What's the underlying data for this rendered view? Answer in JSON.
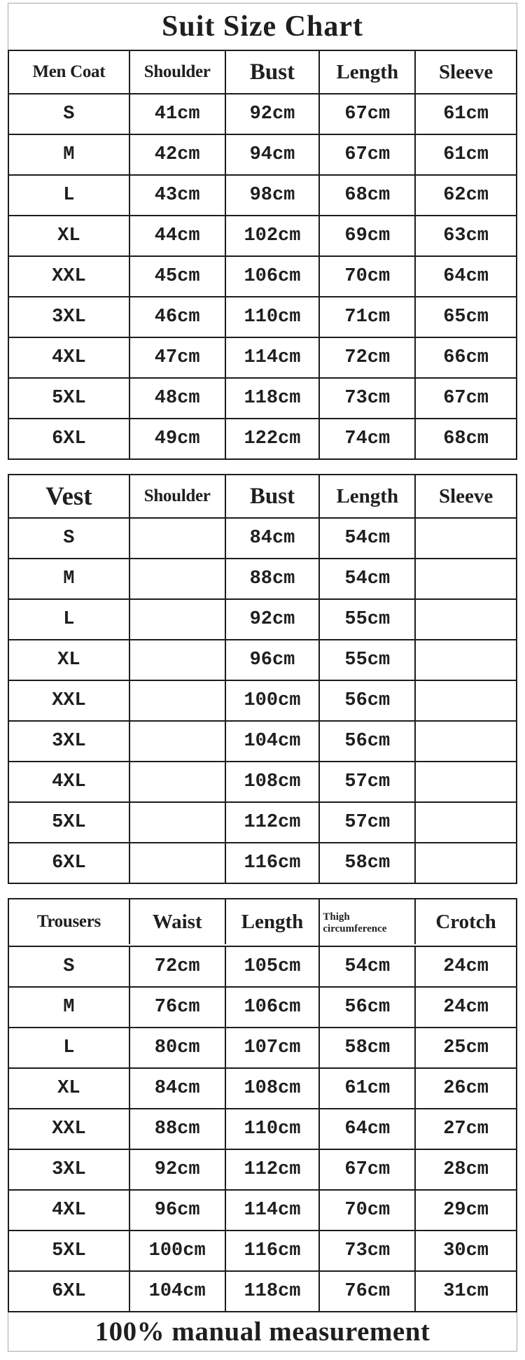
{
  "page": {
    "title": "Suit Size Chart",
    "footer_note": "100% manual measurement"
  },
  "colors": {
    "table_border": "#1d1d1d",
    "outer_box_border": "#a9a9a9",
    "text": "#1f1f1f",
    "background": "#ffffff"
  },
  "chart_data": [
    {
      "type": "table",
      "name": "men-coat",
      "columns": [
        "Men Coat",
        "Shoulder",
        "Bust",
        "Length",
        "Sleeve"
      ],
      "rows": [
        [
          "S",
          "41cm",
          "92cm",
          "67cm",
          "61cm"
        ],
        [
          "M",
          "42cm",
          "94cm",
          "67cm",
          "61cm"
        ],
        [
          "L",
          "43cm",
          "98cm",
          "68cm",
          "62cm"
        ],
        [
          "XL",
          "44cm",
          "102cm",
          "69cm",
          "63cm"
        ],
        [
          "XXL",
          "45cm",
          "106cm",
          "70cm",
          "64cm"
        ],
        [
          "3XL",
          "46cm",
          "110cm",
          "71cm",
          "65cm"
        ],
        [
          "4XL",
          "47cm",
          "114cm",
          "72cm",
          "66cm"
        ],
        [
          "5XL",
          "48cm",
          "118cm",
          "73cm",
          "67cm"
        ],
        [
          "6XL",
          "49cm",
          "122cm",
          "74cm",
          "68cm"
        ]
      ]
    },
    {
      "type": "table",
      "name": "vest",
      "columns": [
        "Vest",
        "Shoulder",
        "Bust",
        "Length",
        "Sleeve"
      ],
      "rows": [
        [
          "S",
          "",
          "84cm",
          "54cm",
          ""
        ],
        [
          "M",
          "",
          "88cm",
          "54cm",
          ""
        ],
        [
          "L",
          "",
          "92cm",
          "55cm",
          ""
        ],
        [
          "XL",
          "",
          "96cm",
          "55cm",
          ""
        ],
        [
          "XXL",
          "",
          "100cm",
          "56cm",
          ""
        ],
        [
          "3XL",
          "",
          "104cm",
          "56cm",
          ""
        ],
        [
          "4XL",
          "",
          "108cm",
          "57cm",
          ""
        ],
        [
          "5XL",
          "",
          "112cm",
          "57cm",
          ""
        ],
        [
          "6XL",
          "",
          "116cm",
          "58cm",
          ""
        ]
      ]
    },
    {
      "type": "table",
      "name": "trousers",
      "columns": [
        "Trousers",
        "Waist",
        "Length",
        "Thigh circumference",
        "Crotch"
      ],
      "rows": [
        [
          "S",
          "72cm",
          "105cm",
          "54cm",
          "24cm"
        ],
        [
          "M",
          "76cm",
          "106cm",
          "56cm",
          "24cm"
        ],
        [
          "L",
          "80cm",
          "107cm",
          "58cm",
          "25cm"
        ],
        [
          "XL",
          "84cm",
          "108cm",
          "61cm",
          "26cm"
        ],
        [
          "XXL",
          "88cm",
          "110cm",
          "64cm",
          "27cm"
        ],
        [
          "3XL",
          "92cm",
          "112cm",
          "67cm",
          "28cm"
        ],
        [
          "4XL",
          "96cm",
          "114cm",
          "70cm",
          "29cm"
        ],
        [
          "5XL",
          "100cm",
          "116cm",
          "73cm",
          "30cm"
        ],
        [
          "6XL",
          "104cm",
          "118cm",
          "76cm",
          "31cm"
        ]
      ]
    }
  ]
}
